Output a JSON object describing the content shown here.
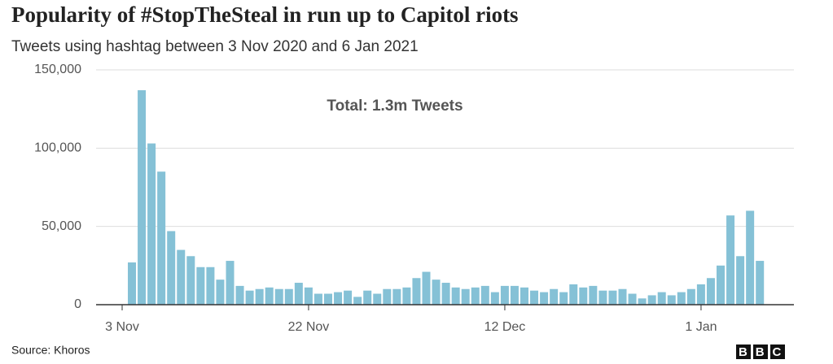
{
  "chart_data": {
    "type": "bar",
    "title": "Popularity of #StopTheSteal in run up to Capitol riots",
    "subtitle": "Tweets using hashtag between 3 Nov 2020 and 6 Jan 2021",
    "annotation": "Total: 1.3m Tweets",
    "source": "Source: Khoros",
    "logo": "BBC",
    "color": "#85c1d6",
    "grid": true,
    "categories": [
      "3 Nov",
      null,
      null,
      null,
      null,
      null,
      null,
      null,
      null,
      null,
      null,
      null,
      null,
      null,
      null,
      null,
      null,
      null,
      null,
      "22 Nov",
      null,
      null,
      null,
      null,
      null,
      null,
      null,
      null,
      null,
      null,
      null,
      null,
      null,
      null,
      null,
      null,
      null,
      null,
      null,
      "12 Dec",
      null,
      null,
      null,
      null,
      null,
      null,
      null,
      null,
      null,
      null,
      null,
      null,
      null,
      null,
      null,
      null,
      null,
      null,
      null,
      "1 Jan",
      null,
      null,
      null,
      null,
      null
    ],
    "values": [
      27000,
      137000,
      103000,
      85000,
      47000,
      35000,
      31000,
      24000,
      24000,
      16000,
      28000,
      12000,
      9000,
      10000,
      11000,
      10000,
      10000,
      14000,
      11000,
      7000,
      7000,
      8000,
      9000,
      5000,
      9000,
      7000,
      10000,
      10000,
      11000,
      17000,
      21000,
      16000,
      14000,
      11000,
      10000,
      11000,
      12000,
      8000,
      12000,
      12000,
      11000,
      9000,
      8000,
      10000,
      8000,
      13000,
      11000,
      12000,
      9000,
      9000,
      10000,
      7000,
      4000,
      6000,
      8000,
      6000,
      8000,
      10000,
      13000,
      17000,
      25000,
      57000,
      31000,
      60000,
      28000
    ],
    "ylim": [
      0,
      150000
    ],
    "yticks": [
      0,
      {
        "value": 50000,
        "label": "50,000"
      },
      {
        "value": 100000,
        "label": "100,000"
      },
      {
        "value": 150000,
        "label": "150,000"
      }
    ]
  }
}
